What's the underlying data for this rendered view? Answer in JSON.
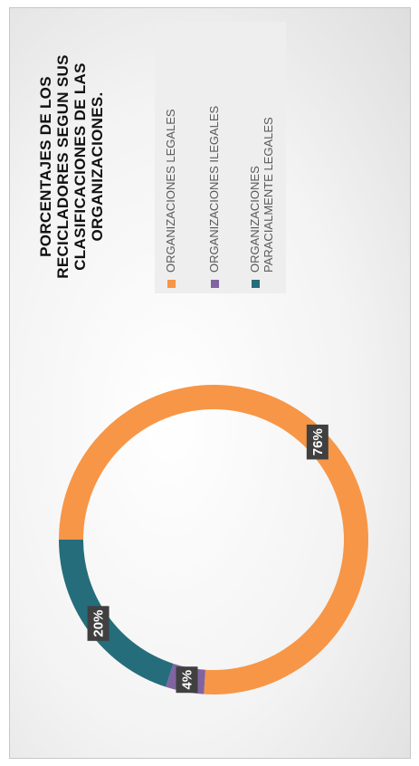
{
  "chart_data": {
    "type": "pie",
    "variant": "donut",
    "title": "PORCENTAJES DE LOS RECICLADORES SEGUN SUS CLASIFICACIONES  DE LAS ORGANIZACIONES.",
    "categories": [
      "ORGANIZACIONES LEGALES",
      "ORGANIZACIONES ILEGALES",
      "ORGANIZACIONES PARACIALMENTE LEGALES"
    ],
    "values": [
      76,
      4,
      20
    ],
    "labels": [
      "76%",
      "4%",
      "20%"
    ],
    "colors": [
      "#F79646",
      "#8064A2",
      "#256D7B"
    ],
    "legend_position": "right",
    "orientation": "rotated 90 degrees counter-clockwise"
  }
}
